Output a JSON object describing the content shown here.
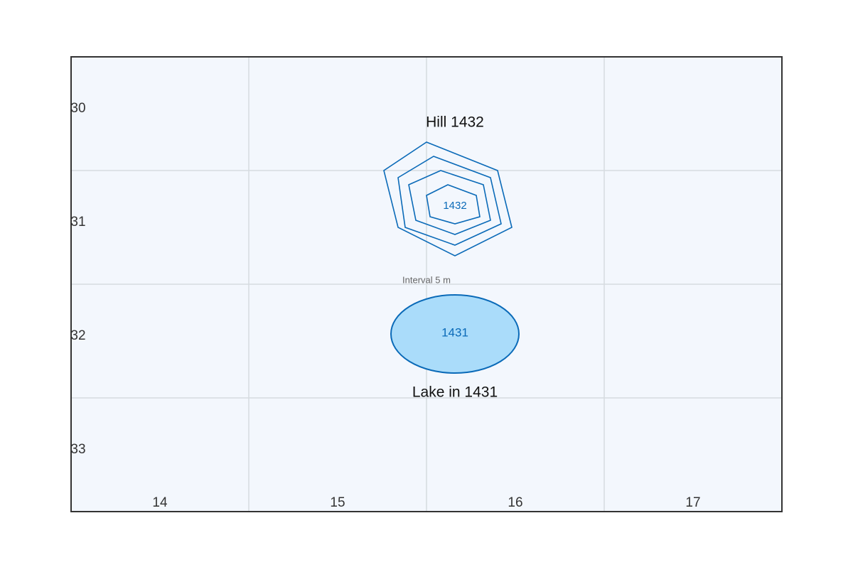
{
  "grid": {
    "columns": [
      "14",
      "15",
      "16",
      "17"
    ],
    "rows": [
      "30",
      "31",
      "32",
      "33"
    ]
  },
  "hill": {
    "label": "Hill 1432",
    "elevation": "1432",
    "contour_interval": "Interval 5 m"
  },
  "lake": {
    "label": "Lake in 1431",
    "elevation": "1431"
  }
}
